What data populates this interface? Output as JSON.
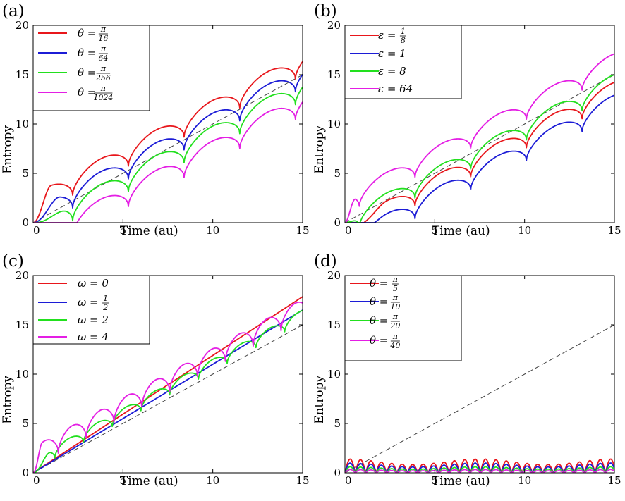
{
  "figure": {
    "panel_count": 4
  },
  "chart_data": [
    {
      "id": "a",
      "type": "line",
      "label": "(a)",
      "xlabel": "Time (au)",
      "ylabel": "Entropy",
      "xlim": [
        0,
        15
      ],
      "ylim": [
        0,
        20
      ],
      "xticks": [
        "0",
        "5",
        "10",
        "15"
      ],
      "yticks": [
        "0",
        "5",
        "10",
        "15",
        "20"
      ],
      "legend_position": "top-left",
      "reference_line": {
        "style": "dashed",
        "color": "#444444",
        "slope": 1.0,
        "intercept": 0
      },
      "series": [
        {
          "name": "θ = π/16",
          "lhs": "θ =",
          "num": "π",
          "den": "16",
          "color": "#e8161b",
          "model": {
            "kind": "steps",
            "start": 1.0,
            "slope": 0.95,
            "amp": 2.2,
            "period": 3.1,
            "phase": 0.9,
            "offset": 1.8,
            "end": 16.8
          }
        },
        {
          "name": "θ = π/64",
          "lhs": "θ =",
          "num": "π",
          "den": "64",
          "color": "#1c1cd6",
          "model": {
            "kind": "steps",
            "start": 1.5,
            "slope": 0.95,
            "amp": 2.2,
            "period": 3.1,
            "phase": 0.9,
            "offset": 0.5,
            "end": 15.4
          }
        },
        {
          "name": "θ = π/256",
          "lhs": "θ =",
          "num": "π",
          "den": "256",
          "color": "#22e01e",
          "model": {
            "kind": "steps",
            "start": 2.0,
            "slope": 0.95,
            "amp": 2.2,
            "period": 3.1,
            "phase": 0.9,
            "offset": -0.8,
            "end": 14.1
          }
        },
        {
          "name": "θ = π/1024",
          "lhs": "θ =",
          "num": "π",
          "den": "1024",
          "color": "#e41ee4",
          "model": {
            "kind": "steps",
            "start": 2.5,
            "slope": 0.95,
            "amp": 2.2,
            "period": 3.1,
            "phase": 0.9,
            "offset": -2.3,
            "end": 12.7
          }
        }
      ]
    },
    {
      "id": "b",
      "type": "line",
      "label": "(b)",
      "xlabel": "Time (au)",
      "ylabel": "Entropy",
      "xlim": [
        0,
        15
      ],
      "ylim": [
        0,
        20
      ],
      "xticks": [
        "0",
        "5",
        "10",
        "15"
      ],
      "yticks": [
        "0",
        "5",
        "10",
        "15",
        "20"
      ],
      "legend_position": "top-left",
      "reference_line": {
        "style": "dashed",
        "color": "#444444",
        "slope": 1.0,
        "intercept": 0
      },
      "series": [
        {
          "name": "ε = 1/8",
          "lhs": "ε =",
          "num": "1",
          "den": "8",
          "color": "#e8161b",
          "model": {
            "kind": "steps",
            "start": 2.3,
            "slope": 0.95,
            "amp": 2.0,
            "period": 3.1,
            "phase": 2.3,
            "offset": -1.0,
            "end": 12.9
          }
        },
        {
          "name": "ε = 1",
          "lhs": "ε = 1",
          "num": "",
          "den": "",
          "color": "#1c1cd6",
          "model": {
            "kind": "steps",
            "start": 2.3,
            "slope": 0.95,
            "amp": 2.0,
            "period": 3.1,
            "phase": 2.3,
            "offset": -2.3,
            "end": 11.6
          }
        },
        {
          "name": "ε = 8",
          "lhs": "ε = 8",
          "num": "",
          "den": "",
          "color": "#22e01e",
          "model": {
            "kind": "steps",
            "start": 1.0,
            "slope": 0.95,
            "amp": 2.0,
            "period": 3.1,
            "phase": 2.3,
            "offset": -0.2,
            "end": 13.5
          }
        },
        {
          "name": "ε = 64",
          "lhs": "ε = 64",
          "num": "",
          "den": "",
          "color": "#e41ee4",
          "model": {
            "kind": "steps",
            "start": 0.6,
            "slope": 0.95,
            "amp": 2.0,
            "period": 3.1,
            "phase": 2.3,
            "offset": 1.9,
            "end": 15.6
          }
        }
      ]
    },
    {
      "id": "c",
      "type": "line",
      "label": "(c)",
      "xlabel": "Time (au)",
      "ylabel": "Entropy",
      "xlim": [
        0,
        15
      ],
      "ylim": [
        0,
        20
      ],
      "xticks": [
        "0",
        "5",
        "10",
        "15"
      ],
      "yticks": [
        "0",
        "5",
        "10",
        "15",
        "20"
      ],
      "legend_position": "top-left",
      "reference_line": {
        "style": "dashed",
        "color": "#444444",
        "slope": 1.0,
        "intercept": 0
      },
      "series": [
        {
          "name": "ω = 0",
          "lhs": "ω = 0",
          "num": "",
          "den": "",
          "color": "#e8161b",
          "model": {
            "kind": "linear",
            "slope": 1.19,
            "start": 0.0,
            "amp": 0,
            "period": 1,
            "phase": 0,
            "offset": 0,
            "end": 17.8
          }
        },
        {
          "name": "ω = 1/2",
          "lhs": "ω =",
          "num": "1",
          "den": "2",
          "color": "#1c1cd6",
          "model": {
            "kind": "linear",
            "slope": 1.1,
            "start": 0.0,
            "amp": 0,
            "period": 1,
            "phase": 0,
            "offset": 0,
            "end": 16.5
          }
        },
        {
          "name": "ω = 2",
          "lhs": "ω = 2",
          "num": "",
          "den": "",
          "color": "#22e01e",
          "model": {
            "kind": "steps",
            "start": 1.0,
            "slope": 1.0,
            "amp": 1.2,
            "period": 1.6,
            "phase": 0.4,
            "offset": 0.9,
            "end": 15.4
          }
        },
        {
          "name": "ω = 4",
          "lhs": "ω = 4",
          "num": "",
          "den": "",
          "color": "#e41ee4",
          "model": {
            "kind": "steps",
            "start": 0.5,
            "slope": 1.0,
            "amp": 2.0,
            "period": 1.55,
            "phase": 0.15,
            "offset": 1.6,
            "end": 16.9
          }
        }
      ]
    },
    {
      "id": "d",
      "type": "line",
      "label": "(d)",
      "xlabel": "Time (au)",
      "ylabel": "Entropy",
      "xlim": [
        0,
        15
      ],
      "ylim": [
        0,
        20
      ],
      "xticks": [
        "0",
        "5",
        "10",
        "15"
      ],
      "yticks": [
        "0",
        "5",
        "10",
        "15",
        "20"
      ],
      "legend_position": "top-left",
      "reference_line": {
        "style": "dashed",
        "color": "#444444",
        "slope": 1.0,
        "intercept": 0
      },
      "series": [
        {
          "name": "θ = π/5",
          "lhs": "θ =",
          "num": "π",
          "den": "5",
          "color": "#e8161b",
          "model": {
            "kind": "bumps",
            "amp": 1.4,
            "period": 0.58,
            "beat": 7.5,
            "beat_depth": 0.4,
            "start": 0,
            "slope": 0,
            "phase": 0,
            "offset": 0,
            "end": 0
          }
        },
        {
          "name": "θ = π/10",
          "lhs": "θ =",
          "num": "π",
          "den": "10",
          "color": "#1c1cd6",
          "model": {
            "kind": "bumps",
            "amp": 1.0,
            "period": 0.58,
            "beat": 7.5,
            "beat_depth": 0.4,
            "start": 0,
            "slope": 0,
            "phase": 0,
            "offset": 0,
            "end": 0
          }
        },
        {
          "name": "θ = π/20",
          "lhs": "θ =",
          "num": "π",
          "den": "20",
          "color": "#22e01e",
          "model": {
            "kind": "bumps",
            "amp": 0.62,
            "period": 0.58,
            "beat": 7.5,
            "beat_depth": 0.4,
            "start": 0,
            "slope": 0,
            "phase": 0,
            "offset": 0,
            "end": 0
          }
        },
        {
          "name": "θ = π/40",
          "lhs": "θ =",
          "num": "π",
          "den": "40",
          "color": "#e41ee4",
          "model": {
            "kind": "bumps",
            "amp": 0.34,
            "period": 0.58,
            "beat": 7.5,
            "beat_depth": 0.4,
            "start": 0,
            "slope": 0,
            "phase": 0,
            "offset": 0,
            "end": 0
          }
        }
      ]
    }
  ]
}
